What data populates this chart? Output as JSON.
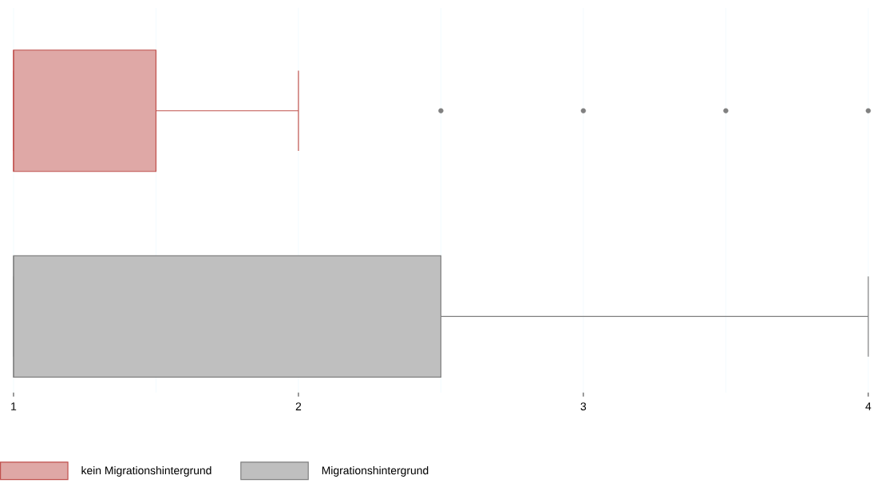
{
  "chart_data": {
    "type": "box",
    "orientation": "horizontal",
    "categories": [
      null
    ],
    "series": [
      {
        "name": "kein Migrationshintergrund",
        "color": "#c0504d",
        "boxes": [
          {
            "low": 1,
            "q1": 1,
            "median": 1,
            "q3": 1.5,
            "high": 2,
            "outliers": [
              2.5,
              3,
              3.5,
              4
            ]
          }
        ]
      },
      {
        "name": "Migrationshintergrund",
        "color": "#808080",
        "boxes": [
          {
            "low": 1,
            "q1": 1,
            "median": 1,
            "q3": 2.5,
            "high": 4
          }
        ]
      }
    ],
    "xlim": [
      1,
      4
    ],
    "xticks": [
      1,
      {
        "value": 1.5,
        "label": null
      },
      2,
      {
        "value": 2.5,
        "label": null
      },
      3,
      {
        "value": 3.5,
        "label": null
      },
      4
    ],
    "grid": "x",
    "legend": "bottom",
    "tick_labels": "x"
  }
}
